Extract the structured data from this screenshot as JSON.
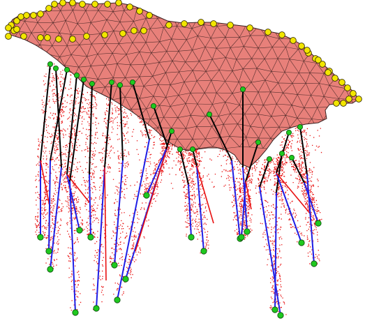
{
  "scene": {
    "colors": {
      "background": "#ffffff",
      "surface_fill": "#e8807a",
      "surface_edge": "#3a2020",
      "boundary_marker": "#f2e600",
      "boundary_marker_edge": "#3a3000",
      "leg_node": "#1fc91f",
      "leg_node_edge": "#0a4a0a",
      "upper_leg": "#000000",
      "lower_leg": "#1e1ee6",
      "point_cloud": "#e81010"
    }
  }
}
